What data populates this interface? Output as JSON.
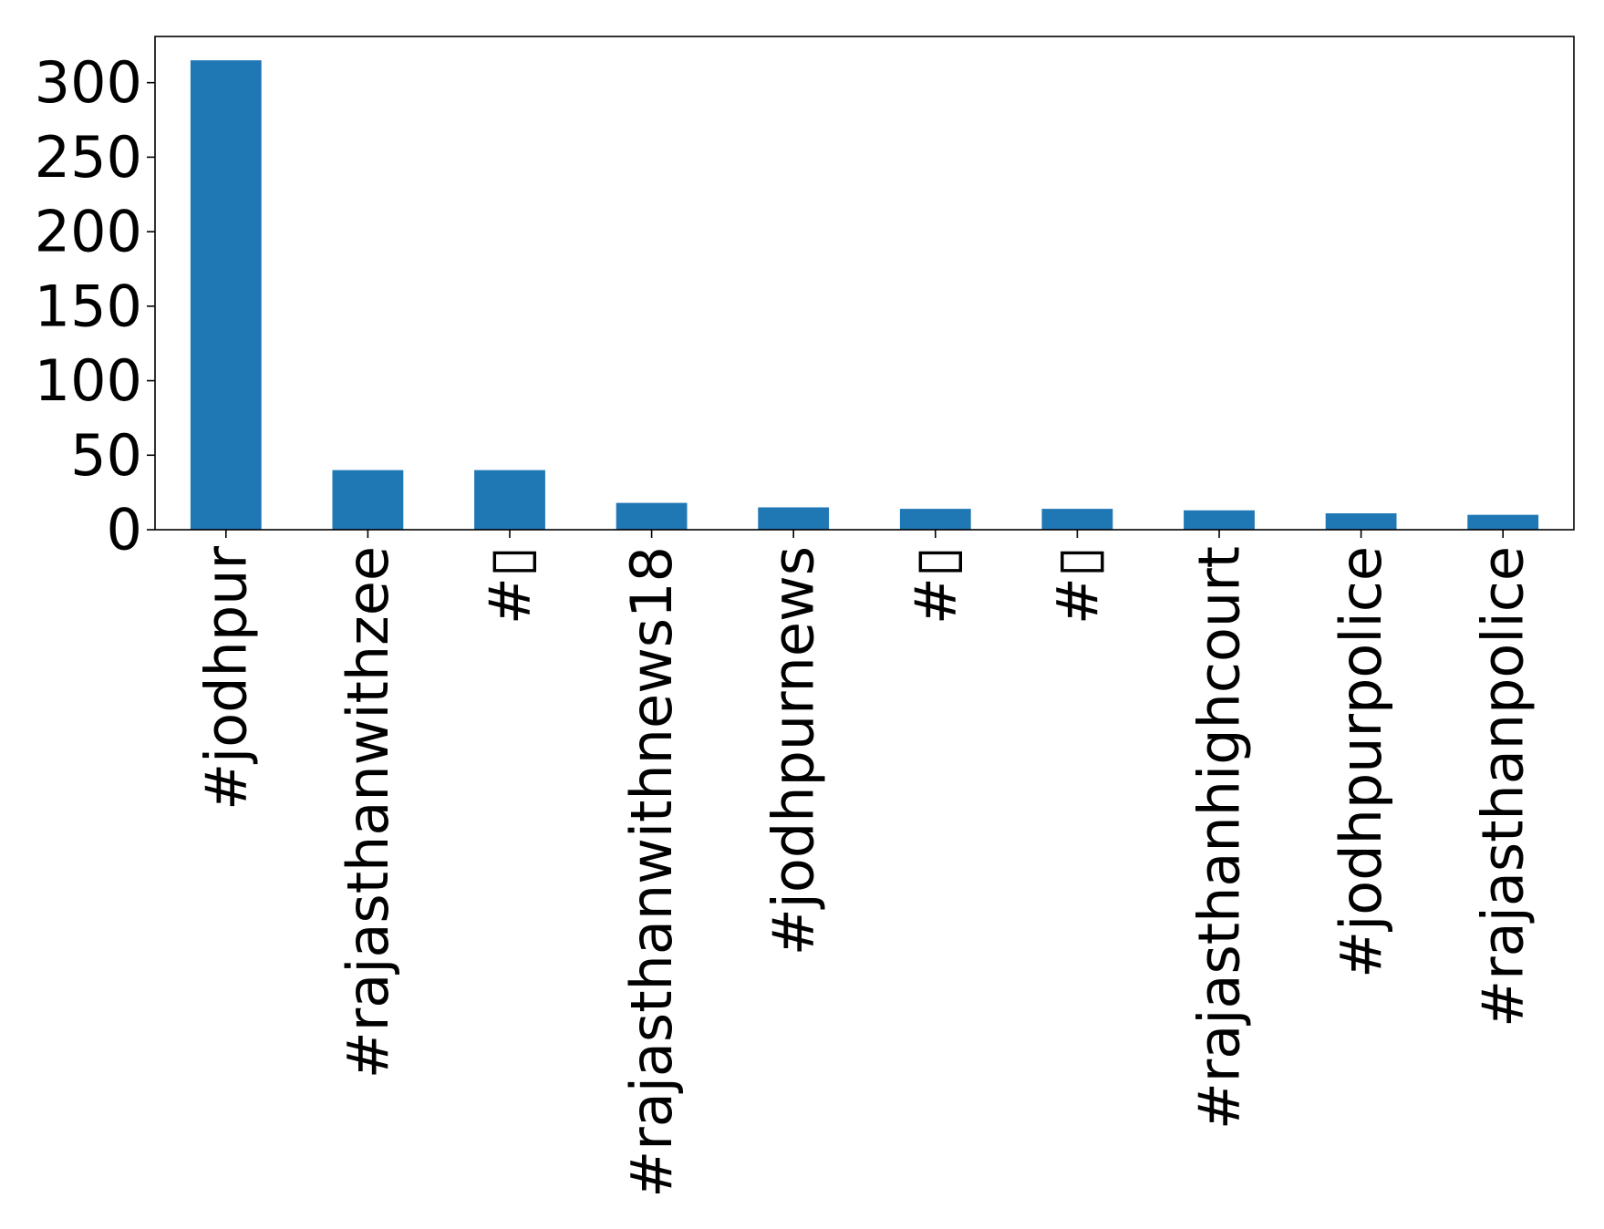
{
  "chart_data": {
    "type": "bar",
    "title": "",
    "xlabel": "",
    "ylabel": "",
    "categories": [
      "#jodhpur",
      "#rajasthanwithzee",
      "#▯",
      "#rajasthanwithnews18",
      "#jodhpurnews",
      "#▯",
      "#▯",
      "#rajasthanhighcourt",
      "#jodhpurpolice",
      "#rajasthanpolice"
    ],
    "values": [
      315,
      40,
      40,
      18,
      15,
      14,
      14,
      13,
      11,
      10
    ],
    "ylim": [
      0,
      331
    ],
    "yticks": [
      0,
      50,
      100,
      150,
      200,
      250,
      300
    ],
    "grid": false,
    "legend": "none",
    "bar_color": "#1f77b4"
  }
}
